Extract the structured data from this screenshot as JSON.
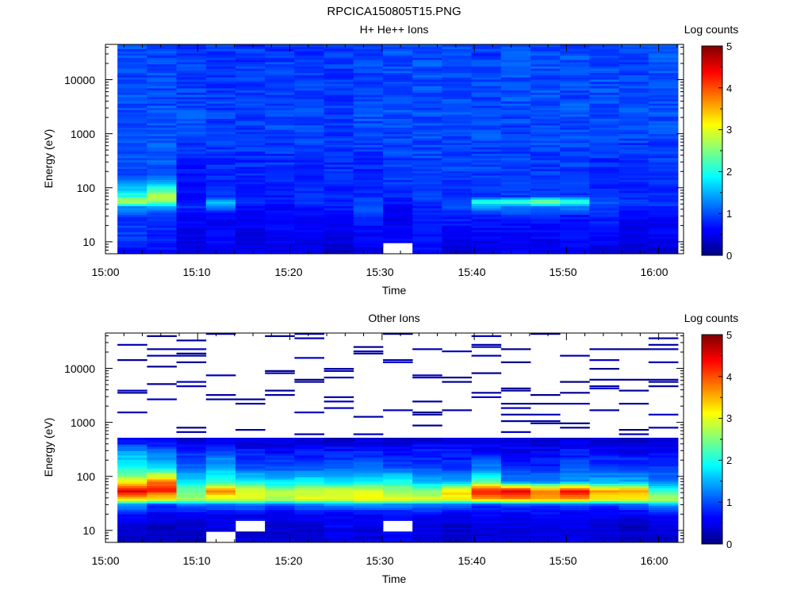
{
  "figure_title": "RPCICA150805T15.PNG",
  "chart_data": [
    {
      "type": "heatmap",
      "id": "hplus",
      "title": "H+ He++ Ions",
      "xlabel": "Time",
      "ylabel": "Energy (eV)",
      "x_tick_labels": [
        "15:00",
        "15:10",
        "15:20",
        "15:30",
        "15:40",
        "15:50",
        "16:00"
      ],
      "x_tick_minutes": [
        0,
        10,
        20,
        30,
        40,
        50,
        60
      ],
      "xlim_minutes": [
        0,
        62.7
      ],
      "y_tick_labels": [
        "10",
        "100",
        "1000",
        "10000"
      ],
      "y_tick_values": [
        10,
        100,
        1000,
        10000
      ],
      "y_scale": "log",
      "ylim": [
        6,
        45000
      ],
      "colorbar_label": "Log counts",
      "colorbar_ticks": [
        "0",
        "1",
        "2",
        "3",
        "4",
        "5"
      ],
      "zlim": [
        0,
        5
      ],
      "time_bins_minutes": [
        1.3,
        4.5,
        7.7,
        10.9,
        14.1,
        17.3,
        20.5,
        23.7,
        26.9,
        30.1,
        33.3,
        36.5,
        39.7,
        42.9,
        46.1,
        49.3,
        52.5,
        55.7,
        58.9,
        62.1
      ],
      "profile": [
        {
          "e": 7,
          "v": [
            0.6,
            0.7,
            0.5,
            0.6,
            0.5,
            0.6,
            0.5,
            0.3,
            0.5,
            null,
            0.6,
            0.4,
            0.5,
            0.6,
            0.5,
            0.6,
            0.5,
            0.4,
            0.4
          ]
        },
        {
          "e": 12,
          "v": [
            0.9,
            0.8,
            0.5,
            0.6,
            0.5,
            0.6,
            0.5,
            0.5,
            0.6,
            0.6,
            0.7,
            0.5,
            0.6,
            0.6,
            0.6,
            0.7,
            0.6,
            0.5,
            0.6
          ]
        },
        {
          "e": 30,
          "v": [
            0.9,
            0.8,
            0.7,
            0.6,
            0.6,
            0.6,
            0.7,
            0.6,
            0.8,
            0.5,
            0.7,
            0.8,
            0.7,
            0.8,
            0.8,
            0.7,
            0.8,
            0.6,
            0.6
          ]
        },
        {
          "e": 45,
          "v": [
            1.4,
            1.5,
            0.8,
            1.2,
            0.7,
            0.7,
            0.6,
            0.8,
            1.1,
            0.6,
            0.8,
            1.0,
            1.4,
            1.3,
            1.2,
            1.3,
            0.9,
            0.8,
            0.8
          ]
        },
        {
          "e": 55,
          "v": [
            2.9,
            2.4,
            0.8,
            1.6,
            0.8,
            0.8,
            0.9,
            0.7,
            1.0,
            0.7,
            0.9,
            1.1,
            2.1,
            2.2,
            2.7,
            2.2,
            1.1,
            0.9,
            0.9
          ]
        },
        {
          "e": 70,
          "v": [
            2.1,
            2.8,
            0.6,
            0.9,
            0.8,
            0.7,
            0.9,
            0.8,
            0.8,
            0.8,
            0.9,
            0.8,
            0.9,
            0.9,
            0.9,
            0.9,
            0.8,
            0.8,
            0.8
          ]
        },
        {
          "e": 150,
          "v": [
            1.0,
            1.1,
            0.7,
            0.8,
            0.8,
            0.8,
            0.8,
            0.8,
            0.8,
            0.9,
            0.9,
            0.9,
            0.9,
            0.9,
            0.9,
            0.9,
            0.8,
            0.8,
            0.9
          ]
        },
        {
          "e": 2000,
          "v": [
            1.0,
            1.0,
            1.0,
            0.9,
            0.9,
            1.0,
            1.0,
            0.9,
            1.0,
            1.0,
            1.0,
            1.0,
            1.0,
            1.0,
            1.0,
            1.0,
            1.0,
            1.0,
            1.0
          ]
        },
        {
          "e": 40000,
          "v": [
            1.0,
            1.0,
            0.9,
            0.9,
            0.9,
            0.9,
            0.9,
            0.9,
            0.9,
            1.0,
            1.0,
            1.0,
            0.9,
            1.0,
            1.0,
            1.0,
            1.0,
            0.9,
            1.0
          ]
        }
      ]
    },
    {
      "type": "heatmap",
      "id": "other",
      "title": "Other Ions",
      "xlabel": "Time",
      "ylabel": "Energy (eV)",
      "x_tick_labels": [
        "15:00",
        "15:10",
        "15:20",
        "15:30",
        "15:40",
        "15:50",
        "16:00"
      ],
      "x_tick_minutes": [
        0,
        10,
        20,
        30,
        40,
        50,
        60
      ],
      "xlim_minutes": [
        0,
        62.7
      ],
      "y_tick_labels": [
        "10",
        "100",
        "1000",
        "10000"
      ],
      "y_tick_values": [
        10,
        100,
        1000,
        10000
      ],
      "y_scale": "log",
      "ylim": [
        6,
        45000
      ],
      "colorbar_label": "Log counts",
      "colorbar_ticks": [
        "0",
        "1",
        "2",
        "3",
        "4",
        "5"
      ],
      "zlim": [
        0,
        5
      ],
      "time_bins_minutes": [
        1.3,
        4.5,
        7.7,
        10.9,
        14.1,
        17.3,
        20.5,
        23.7,
        26.9,
        30.1,
        33.3,
        36.5,
        39.7,
        42.9,
        46.1,
        49.3,
        52.5,
        55.7,
        58.9,
        62.1
      ],
      "profile": [
        {
          "e": 7,
          "v": [
            0.3,
            0.4,
            0.3,
            null,
            0.4,
            0.4,
            0.4,
            0.5,
            0.5,
            0.6,
            0.5,
            0.3,
            0.4,
            0.4,
            0.5,
            0.5,
            0.5,
            0.4,
            0.4
          ]
        },
        {
          "e": 12,
          "v": [
            0.4,
            0.3,
            0.4,
            0.5,
            null,
            0.4,
            0.4,
            0.6,
            0.5,
            null,
            0.5,
            0.4,
            0.5,
            0.5,
            0.5,
            0.5,
            0.4,
            0.3,
            0.5
          ]
        },
        {
          "e": 20,
          "v": [
            0.7,
            0.6,
            0.6,
            0.6,
            0.6,
            0.6,
            0.6,
            0.6,
            0.6,
            0.6,
            0.6,
            0.6,
            0.7,
            0.6,
            0.6,
            0.6,
            0.6,
            0.6,
            0.6
          ]
        },
        {
          "e": 30,
          "v": [
            1.4,
            0.9,
            1.1,
            1.1,
            1.2,
            1.0,
            1.2,
            1.3,
            1.3,
            1.3,
            1.2,
            1.1,
            0.8,
            0.9,
            0.9,
            1.0,
            0.9,
            1.0,
            1.4
          ]
        },
        {
          "e": 38,
          "v": [
            3.2,
            3.1,
            2.7,
            2.9,
            2.9,
            2.8,
            3.0,
            3.0,
            3.1,
            3.0,
            3.0,
            3.1,
            3.6,
            3.6,
            3.5,
            3.5,
            3.2,
            3.2,
            2.8
          ]
        },
        {
          "e": 55,
          "v": [
            4.6,
            4.2,
            2.3,
            3.7,
            3.0,
            2.7,
            2.8,
            2.9,
            2.9,
            2.6,
            2.5,
            3.3,
            4.3,
            4.6,
            3.9,
            4.5,
            3.6,
            3.6,
            2.2
          ]
        },
        {
          "e": 80,
          "v": [
            3.0,
            3.8,
            1.8,
            2.0,
            1.9,
            1.7,
            1.9,
            1.7,
            1.9,
            2.0,
            1.6,
            1.4,
            2.3,
            1.3,
            1.3,
            1.4,
            1.5,
            1.5,
            1.2
          ]
        },
        {
          "e": 150,
          "v": [
            2.0,
            1.8,
            1.1,
            1.5,
            1.0,
            1.0,
            1.0,
            1.0,
            1.1,
            1.0,
            0.9,
            0.9,
            1.2,
            0.8,
            0.8,
            1.1,
            0.9,
            0.9,
            0.9
          ]
        },
        {
          "e": 300,
          "v": [
            1.4,
            1.1,
            0.8,
            0.9,
            0.7,
            0.6,
            0.7,
            0.7,
            0.8,
            0.7,
            0.7,
            0.7,
            0.7,
            0.6,
            0.6,
            0.7,
            0.6,
            0.6,
            0.6
          ]
        },
        {
          "e": 500,
          "v": [
            0.5,
            0.5,
            0.4,
            0.4,
            0.4,
            0.4,
            0.4,
            0.4,
            0.4,
            0.4,
            0.4,
            0.4,
            0.5,
            0.4,
            0.4,
            0.4,
            0.4,
            0.4,
            0.4
          ]
        }
      ],
      "sparse_hits_log_counts": 0.2
    }
  ]
}
